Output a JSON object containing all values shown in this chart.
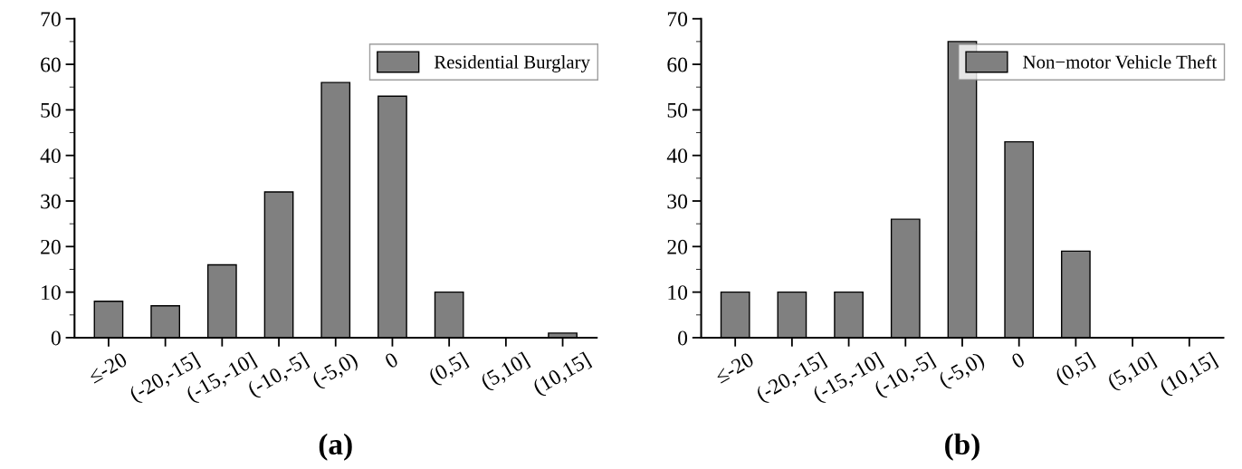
{
  "chart_data": [
    {
      "type": "bar",
      "categories": [
        "≤-20",
        "(-20,-15]",
        "(-15,-10]",
        "(-10,-5]",
        "(-5,0)",
        "0",
        "(0,5]",
        "(5,10]",
        "(10,15]"
      ],
      "series": [
        {
          "name": "Residential Burglary",
          "color": "#808080",
          "values": [
            8,
            7,
            16,
            32,
            56,
            53,
            10,
            0,
            1
          ]
        }
      ],
      "ylim": [
        0,
        70
      ],
      "yticks": [
        0,
        10,
        20,
        30,
        40,
        50,
        60,
        70
      ],
      "legend": "top right",
      "grid": false,
      "annotations": [
        "(a)"
      ]
    },
    {
      "type": "bar",
      "categories": [
        "≤-20",
        "(-20,-15]",
        "(-15,-10]",
        "(-10,-5]",
        "(-5,0)",
        "0",
        "(0,5]",
        "(5,10]",
        "(10,15]"
      ],
      "series": [
        {
          "name": "Non−motor Vehicle Theft",
          "color": "#808080",
          "values": [
            10,
            10,
            10,
            26,
            65,
            43,
            19,
            0,
            0
          ]
        }
      ],
      "ylim": [
        0,
        70
      ],
      "yticks": [
        0,
        10,
        20,
        30,
        40,
        50,
        60,
        70
      ],
      "legend": "top right",
      "grid": false,
      "annotations": [
        "(b)"
      ]
    }
  ]
}
